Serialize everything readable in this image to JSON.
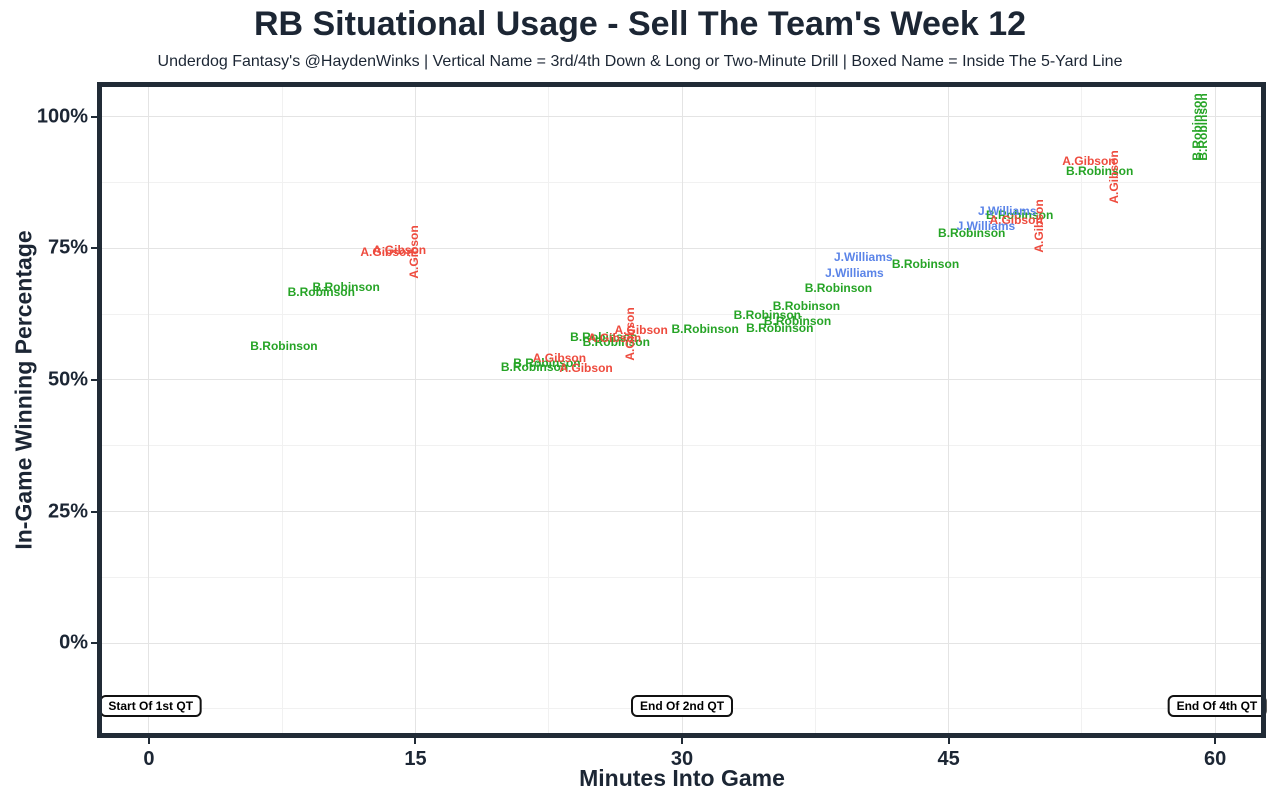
{
  "chart_data": {
    "type": "scatter",
    "title": "RB Situational Usage - Sell The Team's Week 12",
    "subtitle": "Underdog Fantasy's @HaydenWinks | Vertical Name = 3rd/4th Down & Long or Two-Minute Drill | Boxed Name = Inside The 5-Yard Line",
    "xlabel": "Minutes Into Game",
    "ylabel": "In-Game Winning Percentage",
    "xlim": [
      -2.64,
      62.58
    ],
    "ylim": [
      -17.06,
      105.65
    ],
    "x_major_ticks": [
      0,
      15,
      30,
      45,
      60
    ],
    "x_tick_labels": [
      "0",
      "15",
      "30",
      "45",
      "60"
    ],
    "x_minor_gridlines": [
      7.5,
      22.5,
      37.5,
      52.5
    ],
    "y_major_ticks": [
      0,
      25,
      50,
      75,
      100
    ],
    "y_tick_labels": [
      "0%",
      "25%",
      "50%",
      "75%",
      "100%"
    ],
    "y_minor_gridlines": [
      -12.5,
      12.5,
      37.5,
      62.5,
      87.5
    ],
    "grid": "major and minor, light gray on white panel",
    "legend": "none (labels colored by player)",
    "colors": {
      "B.Robinson": "#26a426",
      "A.Gibson": "#ee4b3e",
      "J.Williams": "#5b84e8",
      "axis_dark": "#212b36"
    },
    "series": [
      {
        "name": "B.Robinson",
        "color": "#26a426",
        "points": [
          {
            "x": 7.6,
            "y": 56.5,
            "vertical": false
          },
          {
            "x": 9.7,
            "y": 66.7,
            "vertical": false
          },
          {
            "x": 11.1,
            "y": 67.6,
            "vertical": false
          },
          {
            "x": 21.7,
            "y": 52.4,
            "vertical": false
          },
          {
            "x": 22.4,
            "y": 53.3,
            "vertical": false
          },
          {
            "x": 25.6,
            "y": 58.2,
            "vertical": false
          },
          {
            "x": 26.3,
            "y": 57.3,
            "vertical": false
          },
          {
            "x": 31.3,
            "y": 59.7,
            "vertical": false
          },
          {
            "x": 34.8,
            "y": 62.3,
            "vertical": false
          },
          {
            "x": 35.5,
            "y": 59.9,
            "vertical": false
          },
          {
            "x": 36.5,
            "y": 61.2,
            "vertical": false
          },
          {
            "x": 37.0,
            "y": 64.0,
            "vertical": false
          },
          {
            "x": 38.8,
            "y": 67.4,
            "vertical": false
          },
          {
            "x": 43.7,
            "y": 72.1,
            "vertical": false
          },
          {
            "x": 46.3,
            "y": 78.0,
            "vertical": false
          },
          {
            "x": 49.0,
            "y": 81.4,
            "vertical": false
          },
          {
            "x": 53.5,
            "y": 89.6,
            "vertical": false
          },
          {
            "x": 59.0,
            "y": 98.1,
            "vertical": true
          },
          {
            "x": 59.3,
            "y": 98.0,
            "vertical": true
          }
        ]
      },
      {
        "name": "A.Gibson",
        "color": "#ee4b3e",
        "points": [
          {
            "x": 13.4,
            "y": 74.4,
            "vertical": false
          },
          {
            "x": 14.1,
            "y": 74.6,
            "vertical": false
          },
          {
            "x": 14.9,
            "y": 74.4,
            "vertical": true
          },
          {
            "x": 23.1,
            "y": 54.2,
            "vertical": false
          },
          {
            "x": 24.6,
            "y": 52.3,
            "vertical": false
          },
          {
            "x": 26.2,
            "y": 58.0,
            "vertical": false
          },
          {
            "x": 27.7,
            "y": 59.5,
            "vertical": false
          },
          {
            "x": 27.1,
            "y": 58.8,
            "vertical": true
          },
          {
            "x": 48.8,
            "y": 80.4,
            "vertical": false
          },
          {
            "x": 50.1,
            "y": 79.3,
            "vertical": true
          },
          {
            "x": 52.9,
            "y": 91.5,
            "vertical": false
          },
          {
            "x": 54.3,
            "y": 88.5,
            "vertical": true
          }
        ]
      },
      {
        "name": "J.Williams",
        "color": "#5b84e8",
        "points": [
          {
            "x": 39.7,
            "y": 70.4,
            "vertical": false
          },
          {
            "x": 40.2,
            "y": 73.4,
            "vertical": false
          },
          {
            "x": 47.1,
            "y": 79.3,
            "vertical": false
          },
          {
            "x": 48.3,
            "y": 82.1,
            "vertical": false
          }
        ]
      }
    ],
    "annotations": [
      {
        "label": "Start Of 1st QT",
        "x": 0.1,
        "y": -12
      },
      {
        "label": "End Of 2nd QT",
        "x": 30.0,
        "y": -12
      },
      {
        "label": "End Of 4th QT",
        "x": 60.1,
        "y": -12
      }
    ]
  }
}
